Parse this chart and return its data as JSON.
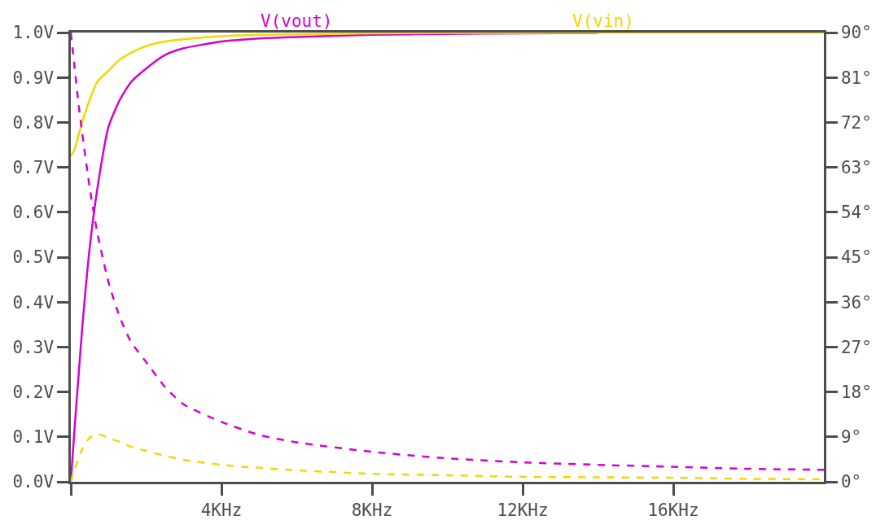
{
  "chart_data": {
    "type": "line",
    "xlim": [
      0,
      20
    ],
    "xticks": [
      {
        "value": 0,
        "label": null
      },
      {
        "value": 4,
        "label": "4KHz"
      },
      {
        "value": 8,
        "label": "8KHz"
      },
      {
        "value": 12,
        "label": "12KHz"
      },
      {
        "value": 16,
        "label": "16KHz"
      }
    ],
    "ylim": [
      0,
      1
    ],
    "yticks": [
      {
        "value": 0,
        "label": "0.0V"
      },
      {
        "value": 0.1,
        "label": "0.1V"
      },
      {
        "value": 0.2,
        "label": "0.2V"
      },
      {
        "value": 0.3,
        "label": "0.3V"
      },
      {
        "value": 0.4,
        "label": "0.4V"
      },
      {
        "value": 0.5,
        "label": "0.5V"
      },
      {
        "value": 0.6,
        "label": "0.6V"
      },
      {
        "value": 0.7,
        "label": "0.7V"
      },
      {
        "value": 0.8,
        "label": "0.8V"
      },
      {
        "value": 0.9,
        "label": "0.9V"
      },
      {
        "value": 1,
        "label": "1.0V"
      }
    ],
    "y2lim": [
      0,
      90
    ],
    "y2ticks": [
      {
        "value": 0,
        "label": "0°"
      },
      {
        "value": 9,
        "label": "9°"
      },
      {
        "value": 18,
        "label": "18°"
      },
      {
        "value": 27,
        "label": "27°"
      },
      {
        "value": 36,
        "label": "36°"
      },
      {
        "value": 45,
        "label": "45°"
      },
      {
        "value": 54,
        "label": "54°"
      },
      {
        "value": 63,
        "label": "63°"
      },
      {
        "value": 72,
        "label": "72°"
      },
      {
        "value": 81,
        "label": "81°"
      },
      {
        "value": 90,
        "label": "90°"
      }
    ],
    "x": [
      0,
      0.1,
      0.2,
      0.3,
      0.5,
      0.7,
      1,
      1.3,
      1.6,
      2,
      2.5,
      3,
      4,
      5,
      6,
      8,
      10,
      12,
      14,
      16,
      18,
      20
    ],
    "grid": false,
    "legend": "top",
    "marker": "none",
    "series": [
      {
        "name": "V(vout)",
        "color": "#d400d4",
        "line_style": "solid",
        "values": [
          0,
          0.12,
          0.23,
          0.34,
          0.52,
          0.65,
          0.79,
          0.85,
          0.89,
          0.92,
          0.95,
          0.965,
          0.98,
          0.987,
          0.99,
          0.995,
          0.997,
          0.998,
          0.999,
          null,
          null,
          null
        ]
      },
      {
        "color": "#d400d4",
        "line_style": "dashed",
        "axis": "y2",
        "values": [
          90,
          83,
          76,
          70,
          59,
          50,
          40,
          33,
          28,
          24,
          19,
          15.5,
          12,
          9.4,
          7.9,
          6,
          4.7,
          3.9,
          3.4,
          3.0,
          2.6,
          2.4
        ]
      },
      {
        "name": "V(vin)",
        "color": "#f0d800",
        "line_style": "solid",
        "values": [
          0.725,
          0.74,
          0.77,
          0.8,
          0.85,
          0.89,
          0.915,
          0.94,
          0.955,
          0.97,
          0.98,
          0.985,
          0.992,
          0.995,
          0.996,
          0.998,
          0.999,
          0.999,
          1.0,
          1.0,
          1.0,
          1.0
        ]
      },
      {
        "color": "#f0d800",
        "line_style": "dashed",
        "axis": "y2",
        "values": [
          0,
          2.5,
          4.5,
          6.5,
          8.8,
          9.6,
          8.8,
          8,
          7,
          6.2,
          5.2,
          4.4,
          3.4,
          2.8,
          2.3,
          1.6,
          1.3,
          1.0,
          0.9,
          0.8,
          0.6,
          0.5
        ]
      }
    ]
  }
}
